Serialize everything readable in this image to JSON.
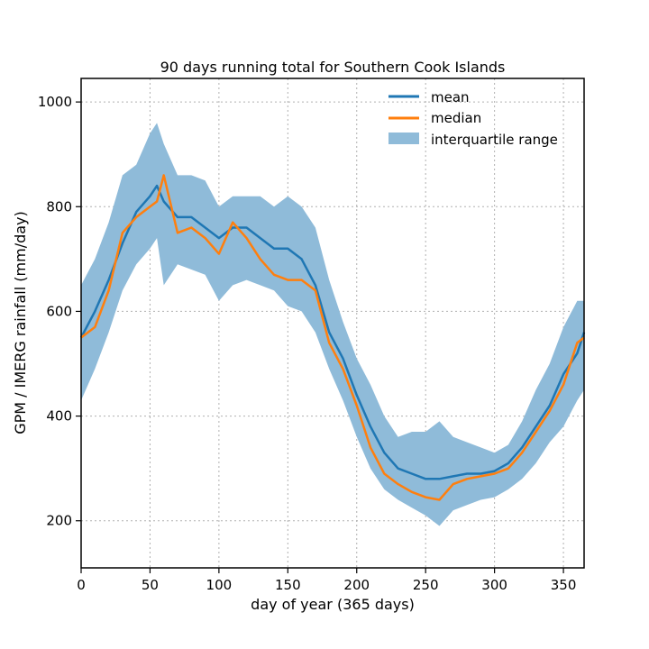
{
  "chart_data": {
    "type": "line",
    "title": "90 days running total for Southern Cook Islands",
    "xlabel": "day of year (365 days)",
    "ylabel": "GPM / IMERG rainfall (mm/day)",
    "xlim": [
      0,
      365
    ],
    "ylim": [
      110,
      1045
    ],
    "xticks": [
      0,
      50,
      100,
      150,
      200,
      250,
      300,
      350
    ],
    "yticks": [
      200,
      400,
      600,
      800,
      1000
    ],
    "grid": true,
    "legend_position": "top-right",
    "colors": {
      "mean": "#1f77b4",
      "median": "#ff7f0e",
      "band": "#8fbbd9"
    },
    "x": [
      0,
      10,
      20,
      30,
      40,
      50,
      55,
      60,
      70,
      80,
      90,
      100,
      110,
      120,
      130,
      140,
      150,
      160,
      170,
      180,
      190,
      200,
      210,
      220,
      230,
      240,
      250,
      260,
      270,
      280,
      290,
      300,
      310,
      320,
      330,
      340,
      350,
      360,
      365
    ],
    "series": [
      {
        "name": "mean",
        "values": [
          550,
          600,
          660,
          730,
          790,
          820,
          840,
          810,
          780,
          780,
          760,
          740,
          760,
          760,
          740,
          720,
          720,
          700,
          650,
          560,
          510,
          440,
          380,
          330,
          300,
          290,
          280,
          280,
          285,
          290,
          290,
          295,
          310,
          340,
          380,
          420,
          480,
          520,
          560
        ]
      },
      {
        "name": "median",
        "values": [
          550,
          570,
          640,
          750,
          780,
          800,
          810,
          860,
          750,
          760,
          740,
          710,
          770,
          740,
          700,
          670,
          660,
          660,
          640,
          540,
          490,
          420,
          340,
          290,
          270,
          255,
          245,
          240,
          270,
          280,
          285,
          290,
          300,
          330,
          370,
          410,
          460,
          540,
          550
        ]
      },
      {
        "name": "interquartile range",
        "lower": [
          430,
          490,
          560,
          640,
          690,
          720,
          740,
          650,
          690,
          680,
          670,
          620,
          650,
          660,
          650,
          640,
          610,
          600,
          560,
          490,
          430,
          360,
          300,
          260,
          240,
          225,
          210,
          190,
          220,
          230,
          240,
          245,
          260,
          280,
          310,
          350,
          380,
          430,
          450
        ],
        "upper": [
          650,
          700,
          770,
          860,
          880,
          940,
          960,
          920,
          860,
          860,
          850,
          800,
          820,
          820,
          820,
          800,
          820,
          800,
          760,
          660,
          580,
          510,
          460,
          400,
          360,
          370,
          370,
          390,
          360,
          350,
          340,
          330,
          345,
          390,
          450,
          500,
          570,
          620,
          620
        ]
      }
    ]
  }
}
